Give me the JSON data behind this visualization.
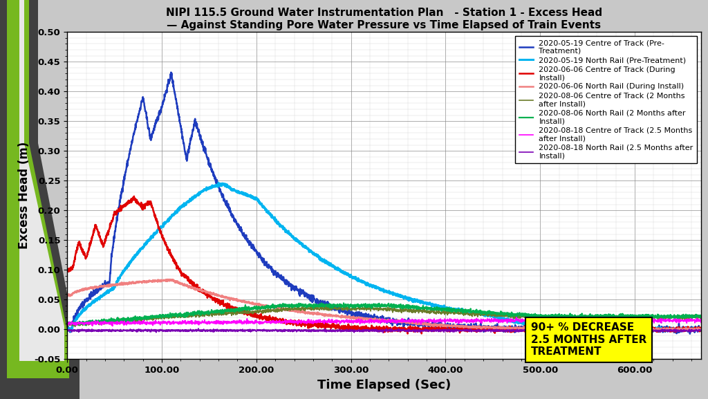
{
  "title_line1": "NIPI 115.5 Ground Water Instrumentation Plan   - Station 1 - Excess Head",
  "title_line2": "— Against Standing Pore Water Pressure vs Time Elapsed of Train Events",
  "xlabel": "Time Elapsed (Sec)",
  "ylabel": "Excess Head (m)",
  "xlim": [
    0,
    670
  ],
  "ylim": [
    -0.05,
    0.5
  ],
  "xticks": [
    0,
    100,
    200,
    300,
    400,
    500,
    600
  ],
  "xtick_labels": [
    "0.00",
    "100.00",
    "200.00",
    "300.00",
    "400.00",
    "500.00",
    "600.00"
  ],
  "yticks": [
    -0.05,
    0.0,
    0.05,
    0.1,
    0.15,
    0.2,
    0.25,
    0.3,
    0.35,
    0.4,
    0.45,
    0.5
  ],
  "background_color": "#ffffff",
  "fig_bg_color": "#c8c8c8",
  "annotation_text": "90+ % DECREASE\n2.5 MONTHS AFTER\nTREATMENT",
  "annotation_bg": "#ffff00",
  "legend_labels": [
    "2020-05-19 Centre of Track (Pre-\nTreatment)",
    "2020-05-19 North Rail (Pre-Treatment)",
    "2020-06-06 Centre of Track (During\nInstall)",
    "2020-06-06 North Rail (During Install)",
    "2020-08-06 Centre of Track (2 Months\nafter Install)",
    "2020-08-06 North Rail (2 Months after\nInstall)",
    "2020-08-18 Centre of Track (2.5 Months\nafter Install)",
    "2020-08-18 North Rail (2.5 Months after\nInstall)"
  ],
  "line_colors": [
    "#1e3cbe",
    "#00b4f0",
    "#e00000",
    "#f08080",
    "#6b7c2a",
    "#00b050",
    "#ff00ff",
    "#7b00b4"
  ],
  "line_widths": [
    1.8,
    2.2,
    1.8,
    1.8,
    1.2,
    1.6,
    1.2,
    1.2
  ],
  "dark_gray": "#404040",
  "green_border": "#76b820",
  "light_border": "#e0e0e0"
}
